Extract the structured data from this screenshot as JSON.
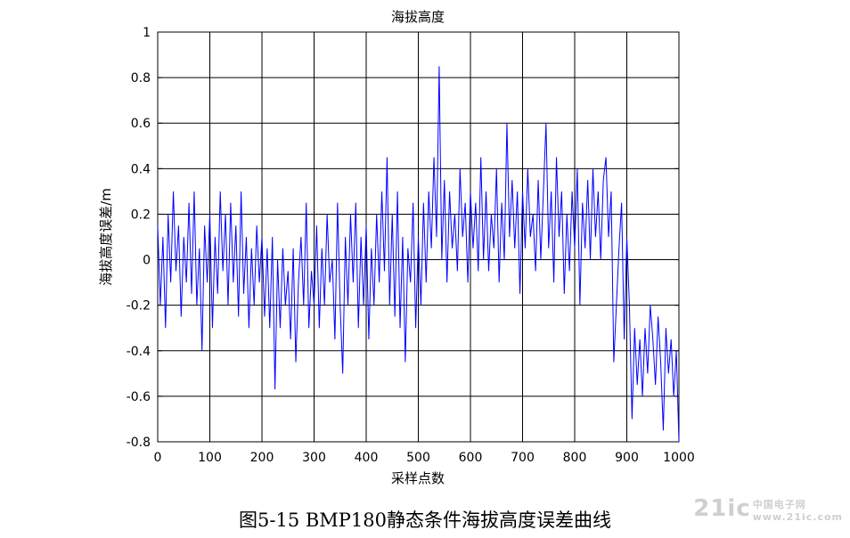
{
  "chart_data": {
    "type": "line",
    "title": "海拔高度",
    "xlabel": "采样点数",
    "ylabel": "海拔高度误差/m",
    "xlim": [
      0,
      1000
    ],
    "ylim": [
      -0.8,
      1.0
    ],
    "x_ticks": [
      "0",
      "100",
      "200",
      "300",
      "400",
      "500",
      "600",
      "700",
      "800",
      "900",
      "1000"
    ],
    "y_ticks": [
      "1",
      "0.8",
      "0.6",
      "0.4",
      "0.2",
      "0",
      "-0.2",
      "-0.4",
      "-0.6",
      "-0.8"
    ],
    "grid": true,
    "line_color": "#0000ff",
    "series": [
      {
        "points": [
          [
            0,
            0.15
          ],
          [
            5,
            -0.2
          ],
          [
            10,
            0.1
          ],
          [
            15,
            -0.3
          ],
          [
            20,
            0.2
          ],
          [
            25,
            -0.1
          ],
          [
            30,
            0.3
          ],
          [
            35,
            -0.05
          ],
          [
            40,
            0.15
          ],
          [
            45,
            -0.25
          ],
          [
            50,
            0.1
          ],
          [
            55,
            -0.1
          ],
          [
            60,
            0.25
          ],
          [
            65,
            -0.15
          ],
          [
            70,
            0.3
          ],
          [
            75,
            -0.2
          ],
          [
            80,
            0.05
          ],
          [
            85,
            -0.4
          ],
          [
            90,
            0.15
          ],
          [
            95,
            -0.1
          ],
          [
            100,
            0.2
          ],
          [
            105,
            -0.3
          ],
          [
            110,
            0.1
          ],
          [
            115,
            -0.15
          ],
          [
            120,
            0.3
          ],
          [
            125,
            -0.05
          ],
          [
            130,
            0.2
          ],
          [
            135,
            -0.2
          ],
          [
            140,
            0.25
          ],
          [
            145,
            -0.1
          ],
          [
            150,
            0.15
          ],
          [
            155,
            -0.25
          ],
          [
            160,
            0.3
          ],
          [
            165,
            -0.15
          ],
          [
            170,
            0.1
          ],
          [
            175,
            -0.3
          ],
          [
            180,
            0.05
          ],
          [
            185,
            -0.2
          ],
          [
            190,
            0.15
          ],
          [
            195,
            -0.1
          ],
          [
            200,
            0.1
          ],
          [
            205,
            -0.25
          ],
          [
            210,
            0.05
          ],
          [
            215,
            -0.3
          ],
          [
            220,
            0.1
          ],
          [
            225,
            -0.57
          ],
          [
            230,
            0.0
          ],
          [
            235,
            -0.3
          ],
          [
            240,
            0.05
          ],
          [
            245,
            -0.2
          ],
          [
            250,
            -0.05
          ],
          [
            255,
            -0.35
          ],
          [
            260,
            0.05
          ],
          [
            265,
            -0.45
          ],
          [
            270,
            -0.1
          ],
          [
            275,
            0.1
          ],
          [
            280,
            -0.2
          ],
          [
            285,
            0.25
          ],
          [
            290,
            -0.3
          ],
          [
            295,
            -0.05
          ],
          [
            300,
            -0.2
          ],
          [
            305,
            0.15
          ],
          [
            310,
            -0.3
          ],
          [
            315,
            0.05
          ],
          [
            320,
            -0.2
          ],
          [
            325,
            0.2
          ],
          [
            330,
            -0.1
          ],
          [
            335,
            0.0
          ],
          [
            340,
            -0.35
          ],
          [
            345,
            0.25
          ],
          [
            350,
            -0.2
          ],
          [
            355,
            -0.5
          ],
          [
            360,
            0.1
          ],
          [
            365,
            -0.2
          ],
          [
            370,
            0.2
          ],
          [
            375,
            -0.1
          ],
          [
            380,
            0.25
          ],
          [
            385,
            -0.3
          ],
          [
            390,
            0.1
          ],
          [
            395,
            -0.2
          ],
          [
            400,
            0.15
          ],
          [
            405,
            -0.35
          ],
          [
            410,
            0.05
          ],
          [
            415,
            -0.2
          ],
          [
            420,
            0.2
          ],
          [
            425,
            -0.1
          ],
          [
            430,
            0.3
          ],
          [
            435,
            -0.05
          ],
          [
            440,
            0.45
          ],
          [
            445,
            -0.2
          ],
          [
            450,
            0.2
          ],
          [
            455,
            -0.25
          ],
          [
            460,
            0.3
          ],
          [
            465,
            -0.3
          ],
          [
            470,
            0.1
          ],
          [
            475,
            -0.45
          ],
          [
            480,
            0.05
          ],
          [
            485,
            -0.1
          ],
          [
            490,
            0.25
          ],
          [
            495,
            -0.3
          ],
          [
            500,
            0.1
          ],
          [
            505,
            -0.2
          ],
          [
            510,
            0.25
          ],
          [
            515,
            -0.1
          ],
          [
            520,
            0.3
          ],
          [
            525,
            0.05
          ],
          [
            530,
            0.45
          ],
          [
            535,
            0.1
          ],
          [
            540,
            0.85
          ],
          [
            545,
            0.0
          ],
          [
            550,
            0.35
          ],
          [
            555,
            -0.1
          ],
          [
            560,
            0.3
          ],
          [
            565,
            0.05
          ],
          [
            570,
            0.2
          ],
          [
            575,
            -0.05
          ],
          [
            580,
            0.4
          ],
          [
            585,
            0.1
          ],
          [
            590,
            0.25
          ],
          [
            595,
            -0.1
          ],
          [
            600,
            0.3
          ],
          [
            605,
            0.05
          ],
          [
            610,
            0.25
          ],
          [
            615,
            -0.05
          ],
          [
            620,
            0.45
          ],
          [
            625,
            0.0
          ],
          [
            630,
            0.3
          ],
          [
            635,
            -0.05
          ],
          [
            640,
            0.2
          ],
          [
            645,
            0.05
          ],
          [
            650,
            0.4
          ],
          [
            655,
            -0.1
          ],
          [
            660,
            0.25
          ],
          [
            665,
            0.0
          ],
          [
            670,
            0.6
          ],
          [
            675,
            0.1
          ],
          [
            680,
            0.35
          ],
          [
            685,
            0.05
          ],
          [
            690,
            0.3
          ],
          [
            695,
            -0.15
          ],
          [
            700,
            0.3
          ],
          [
            705,
            0.05
          ],
          [
            710,
            0.4
          ],
          [
            715,
            0.1
          ],
          [
            720,
            0.2
          ],
          [
            725,
            -0.05
          ],
          [
            730,
            0.35
          ],
          [
            735,
            0.0
          ],
          [
            740,
            0.3
          ],
          [
            745,
            0.6
          ],
          [
            750,
            0.05
          ],
          [
            755,
            0.3
          ],
          [
            760,
            -0.1
          ],
          [
            765,
            0.45
          ],
          [
            770,
            0.1
          ],
          [
            775,
            0.3
          ],
          [
            780,
            -0.15
          ],
          [
            785,
            0.2
          ],
          [
            790,
            -0.05
          ],
          [
            795,
            0.3
          ],
          [
            800,
            0.05
          ],
          [
            805,
            0.4
          ],
          [
            810,
            -0.2
          ],
          [
            815,
            0.25
          ],
          [
            820,
            0.05
          ],
          [
            825,
            0.35
          ],
          [
            830,
            0.0
          ],
          [
            835,
            0.4
          ],
          [
            840,
            0.1
          ],
          [
            845,
            0.3
          ],
          [
            850,
            0.0
          ],
          [
            855,
            0.35
          ],
          [
            860,
            0.45
          ],
          [
            865,
            0.1
          ],
          [
            870,
            0.3
          ],
          [
            875,
            -0.45
          ],
          [
            880,
            -0.2
          ],
          [
            885,
            0.05
          ],
          [
            890,
            0.25
          ],
          [
            895,
            -0.35
          ],
          [
            900,
            0.1
          ],
          [
            905,
            -0.2
          ],
          [
            910,
            -0.7
          ],
          [
            915,
            -0.3
          ],
          [
            920,
            -0.55
          ],
          [
            925,
            -0.35
          ],
          [
            930,
            -0.6
          ],
          [
            935,
            -0.3
          ],
          [
            940,
            -0.5
          ],
          [
            945,
            -0.2
          ],
          [
            950,
            -0.35
          ],
          [
            955,
            -0.55
          ],
          [
            960,
            -0.25
          ],
          [
            965,
            -0.45
          ],
          [
            970,
            -0.75
          ],
          [
            975,
            -0.3
          ],
          [
            980,
            -0.5
          ],
          [
            985,
            -0.35
          ],
          [
            990,
            -0.6
          ],
          [
            995,
            -0.4
          ],
          [
            1000,
            -0.8
          ]
        ]
      }
    ]
  },
  "caption": "图5-15 BMP180静态条件海拔高度误差曲线",
  "watermark": {
    "main": "21ic",
    "sub_line1": "中国电子网",
    "sub_line2": "www.21ic.com"
  }
}
